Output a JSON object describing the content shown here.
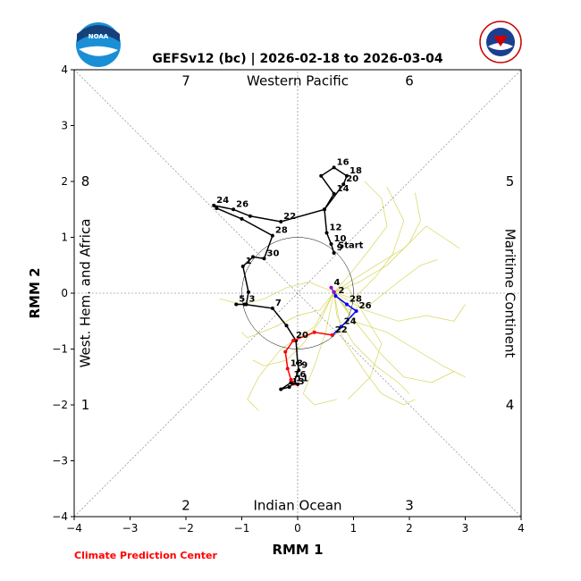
{
  "header": {
    "title": "GEFSv12 (bc) | 2026-02-18 to 2026-03-04",
    "left_logo_text": "NOAA",
    "right_logo_text": "NATIONAL WEATHER SERVICE"
  },
  "footer": {
    "credit": "Climate Prediction Center"
  },
  "colors": {
    "observed": "#000000",
    "fc_blue": "#0000ff",
    "fc_red": "#ff0000",
    "fc_purple": "#9900cc",
    "ensemble": "#cccc33",
    "noaa_blue": "#1a8fd6",
    "credit": "#ff0000"
  },
  "chart_data": {
    "type": "line",
    "title": "GEFSv12 (bc) | 2026-02-18 to 2026-03-04",
    "xlabel": "RMM 1",
    "ylabel": "RMM 2",
    "xlim": [
      -4,
      4
    ],
    "ylim": [
      -4,
      4
    ],
    "xticks": [
      "−4",
      "−3",
      "−2",
      "−1",
      "0",
      "1",
      "2",
      "3",
      "4"
    ],
    "yticks": [
      "−4",
      "−3",
      "−2",
      "−1",
      "0",
      "1",
      "2",
      "3",
      "4"
    ],
    "phase_numbers": [
      {
        "label": "1",
        "x": -3.8,
        "y": -2.0
      },
      {
        "label": "2",
        "x": -2.0,
        "y": -3.8
      },
      {
        "label": "3",
        "x": 2.0,
        "y": -3.8
      },
      {
        "label": "4",
        "x": 3.8,
        "y": -2.0
      },
      {
        "label": "5",
        "x": 3.8,
        "y": 2.0
      },
      {
        "label": "6",
        "x": 2.0,
        "y": 3.8
      },
      {
        "label": "7",
        "x": -2.0,
        "y": 3.8
      },
      {
        "label": "8",
        "x": -3.8,
        "y": 2.0
      }
    ],
    "region_labels": {
      "top": "Western Pacific",
      "bottom": "Indian Ocean",
      "left": "West. Hem. and Africa",
      "right": "Maritime Continent"
    },
    "series": [
      {
        "color": "#000000",
        "points": [
          {
            "x": 0.65,
            "y": 0.72,
            "label": "9"
          },
          {
            "x": 0.6,
            "y": 0.88,
            "label": "10"
          },
          {
            "x": 0.52,
            "y": 1.08,
            "label": "12"
          },
          {
            "x": 0.48,
            "y": 1.5,
            "label": ""
          },
          {
            "x": 0.65,
            "y": 1.78,
            "label": "14"
          },
          {
            "x": 0.42,
            "y": 2.1,
            "label": ""
          },
          {
            "x": 0.65,
            "y": 2.25,
            "label": "16"
          },
          {
            "x": 0.88,
            "y": 2.1,
            "label": "18"
          },
          {
            "x": 0.82,
            "y": 1.95,
            "label": "20"
          },
          {
            "x": 0.48,
            "y": 1.5,
            "label": ""
          },
          {
            "x": -0.3,
            "y": 1.28,
            "label": "22"
          },
          {
            "x": -0.85,
            "y": 1.38,
            "label": ""
          },
          {
            "x": -1.15,
            "y": 1.5,
            "label": "26"
          },
          {
            "x": -1.5,
            "y": 1.57,
            "label": "24"
          },
          {
            "x": -1.45,
            "y": 1.52,
            "label": ""
          },
          {
            "x": -1.0,
            "y": 1.33,
            "label": ""
          },
          {
            "x": -0.45,
            "y": 1.03,
            "label": "28"
          },
          {
            "x": -0.6,
            "y": 0.62,
            "label": "30"
          },
          {
            "x": -0.8,
            "y": 0.65,
            "label": ""
          },
          {
            "x": -0.98,
            "y": 0.48,
            "label": "1"
          },
          {
            "x": -0.88,
            "y": 0.02,
            "label": ""
          },
          {
            "x": -0.92,
            "y": -0.2,
            "label": "3"
          },
          {
            "x": -1.1,
            "y": -0.2,
            "label": "5"
          },
          {
            "x": -0.95,
            "y": -0.2,
            "label": ""
          },
          {
            "x": -0.45,
            "y": -0.27,
            "label": "7"
          },
          {
            "x": -0.2,
            "y": -0.58,
            "label": ""
          },
          {
            "x": -0.03,
            "y": -0.85,
            "label": ""
          },
          {
            "x": 0.0,
            "y": -1.25,
            "label": ""
          },
          {
            "x": 0.02,
            "y": -1.38,
            "label": "9"
          },
          {
            "x": -0.08,
            "y": -1.62,
            "label": "11"
          },
          {
            "x": -0.15,
            "y": -1.68,
            "label": "13"
          },
          {
            "x": -0.3,
            "y": -1.72,
            "label": ""
          },
          {
            "x": -0.12,
            "y": -1.6,
            "label": ""
          },
          {
            "x": 0.0,
            "y": -1.63,
            "label": ""
          }
        ]
      },
      {
        "color": "#0000ff",
        "points": [
          {
            "x": 0.65,
            "y": 0.02,
            "label": ""
          },
          {
            "x": 0.68,
            "y": -0.05,
            "label": "2"
          },
          {
            "x": 0.88,
            "y": -0.2,
            "label": "28"
          },
          {
            "x": 1.05,
            "y": -0.32,
            "label": "26"
          },
          {
            "x": 0.78,
            "y": -0.6,
            "label": "24"
          },
          {
            "x": 0.62,
            "y": -0.75,
            "label": ""
          }
        ]
      },
      {
        "color": "#ff0000",
        "points": [
          {
            "x": 0.62,
            "y": -0.75,
            "label": "22"
          },
          {
            "x": 0.3,
            "y": -0.7,
            "label": ""
          },
          {
            "x": -0.08,
            "y": -0.85,
            "label": "20"
          },
          {
            "x": -0.22,
            "y": -1.05,
            "label": ""
          },
          {
            "x": -0.18,
            "y": -1.35,
            "label": "18"
          },
          {
            "x": -0.12,
            "y": -1.55,
            "label": "16"
          },
          {
            "x": -0.05,
            "y": -1.62,
            "label": ""
          }
        ]
      },
      {
        "color": "#9900cc",
        "points": [
          {
            "x": 0.6,
            "y": 0.1,
            "label": "4"
          },
          {
            "x": 0.65,
            "y": 0.02,
            "label": ""
          }
        ]
      }
    ],
    "start_label": "Start",
    "ensemble_members": [
      [
        [
          0.65,
          0.02
        ],
        [
          0.9,
          -0.3
        ],
        [
          1.3,
          -0.2
        ],
        [
          1.8,
          0.2
        ],
        [
          2.2,
          0.5
        ],
        [
          2.5,
          0.6
        ]
      ],
      [
        [
          0.65,
          0.02
        ],
        [
          1.0,
          -0.5
        ],
        [
          1.6,
          -0.7
        ],
        [
          2.1,
          -1.0
        ],
        [
          2.6,
          -1.3
        ],
        [
          3.0,
          -1.5
        ]
      ],
      [
        [
          0.65,
          0.02
        ],
        [
          0.7,
          -0.4
        ],
        [
          1.0,
          -0.9
        ],
        [
          1.4,
          -1.3
        ],
        [
          1.8,
          -1.6
        ],
        [
          2.0,
          -1.8
        ]
      ],
      [
        [
          0.65,
          0.02
        ],
        [
          0.4,
          -0.5
        ],
        [
          0.1,
          -0.9
        ],
        [
          -0.2,
          -1.2
        ],
        [
          -0.6,
          -1.3
        ],
        [
          -0.8,
          -1.2
        ]
      ],
      [
        [
          0.65,
          0.02
        ],
        [
          1.1,
          0.2
        ],
        [
          1.6,
          0.5
        ],
        [
          2.0,
          0.9
        ],
        [
          2.2,
          1.3
        ],
        [
          2.1,
          1.8
        ]
      ],
      [
        [
          0.65,
          0.02
        ],
        [
          0.9,
          0.3
        ],
        [
          1.3,
          0.8
        ],
        [
          1.6,
          1.2
        ],
        [
          1.5,
          1.7
        ],
        [
          1.2,
          2.0
        ]
      ],
      [
        [
          0.65,
          0.02
        ],
        [
          0.4,
          -0.3
        ],
        [
          0.0,
          -0.4
        ],
        [
          -0.4,
          -0.6
        ],
        [
          -0.9,
          -0.8
        ],
        [
          -1.0,
          -0.7
        ]
      ],
      [
        [
          0.65,
          0.02
        ],
        [
          1.2,
          -0.3
        ],
        [
          1.8,
          -0.5
        ],
        [
          2.3,
          -0.4
        ],
        [
          2.8,
          -0.5
        ],
        [
          3.0,
          -0.2
        ]
      ],
      [
        [
          0.65,
          0.02
        ],
        [
          0.8,
          -0.8
        ],
        [
          1.2,
          -1.4
        ],
        [
          1.5,
          -1.8
        ],
        [
          1.9,
          -2.0
        ],
        [
          2.1,
          -1.9
        ]
      ],
      [
        [
          0.65,
          0.02
        ],
        [
          0.2,
          0.2
        ],
        [
          -0.2,
          0.1
        ],
        [
          -0.6,
          -0.1
        ],
        [
          -1.0,
          -0.2
        ],
        [
          -1.4,
          -0.1
        ]
      ],
      [
        [
          0.65,
          0.02
        ],
        [
          1.4,
          0.5
        ],
        [
          1.9,
          0.8
        ],
        [
          2.3,
          1.2
        ],
        [
          2.6,
          1.0
        ],
        [
          2.9,
          0.8
        ]
      ],
      [
        [
          0.65,
          0.02
        ],
        [
          0.5,
          -0.7
        ],
        [
          0.3,
          -1.3
        ],
        [
          0.1,
          -1.8
        ],
        [
          0.3,
          -2.0
        ],
        [
          0.7,
          -1.9
        ]
      ],
      [
        [
          0.65,
          0.02
        ],
        [
          1.0,
          -0.1
        ],
        [
          1.4,
          0.3
        ],
        [
          1.7,
          0.7
        ],
        [
          1.9,
          1.3
        ],
        [
          1.6,
          1.9
        ]
      ],
      [
        [
          0.65,
          0.02
        ],
        [
          0.3,
          -0.6
        ],
        [
          -0.3,
          -1.0
        ],
        [
          -0.7,
          -1.5
        ],
        [
          -0.9,
          -1.9
        ],
        [
          -0.7,
          -2.1
        ]
      ],
      [
        [
          0.65,
          0.02
        ],
        [
          1.1,
          -0.6
        ],
        [
          1.5,
          -1.1
        ],
        [
          1.9,
          -1.5
        ],
        [
          2.4,
          -1.6
        ],
        [
          2.8,
          -1.4
        ]
      ],
      [
        [
          0.65,
          0.02
        ],
        [
          0.9,
          0.1
        ],
        [
          1.2,
          -0.4
        ],
        [
          1.5,
          -0.9
        ],
        [
          1.3,
          -1.5
        ],
        [
          0.9,
          -1.9
        ]
      ]
    ]
  }
}
